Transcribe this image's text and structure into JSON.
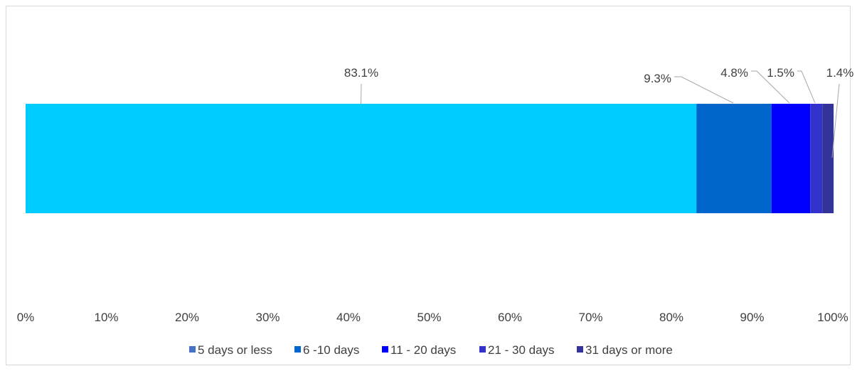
{
  "chart_data": {
    "type": "bar",
    "orientation": "horizontal",
    "stacked": true,
    "percent_axis": true,
    "series": [
      {
        "name": "5 days or less",
        "value": 83.1,
        "label": "83.1%",
        "color": "#00ccff"
      },
      {
        "name": "6 -10 days",
        "value": 9.3,
        "label": "9.3%",
        "color": "#0066cc"
      },
      {
        "name": "11 -  20 days",
        "value": 4.8,
        "label": "4.8%",
        "color": "#0000ff"
      },
      {
        "name": "21 - 30 days",
        "value": 1.5,
        "label": "1.5%",
        "color": "#3333cc"
      },
      {
        "name": "31 days or more",
        "value": 1.4,
        "label": "1.4%",
        "color": "#333399"
      }
    ],
    "legend_colors": [
      "#4472c4",
      "#0066cc",
      "#0000ff",
      "#3333cc",
      "#333399"
    ],
    "xlim": [
      0,
      100
    ],
    "x_ticks": [
      "0%",
      "10%",
      "20%",
      "30%",
      "40%",
      "50%",
      "60%",
      "70%",
      "80%",
      "90%",
      "100%"
    ],
    "grid": false,
    "legend_position": "bottom",
    "title": "",
    "xlabel": "",
    "ylabel": ""
  }
}
